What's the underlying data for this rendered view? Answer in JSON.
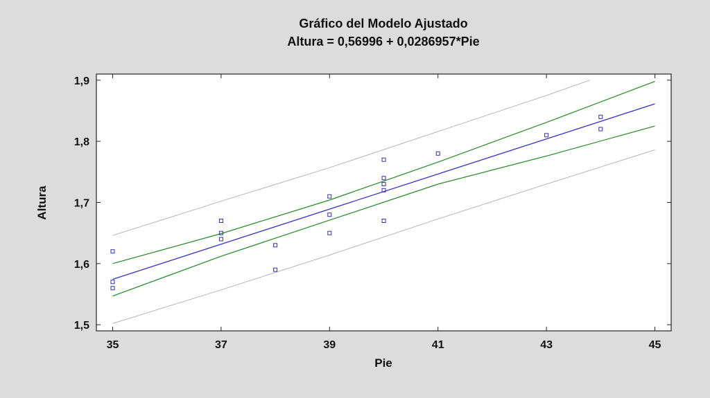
{
  "chart_data": {
    "type": "scatter",
    "title": "Gráfico del Modelo Ajustado",
    "subtitle": "Altura = 0,56996 + 0,0286957*Pie",
    "xlabel": "Pie",
    "ylabel": "Altura",
    "xlim": [
      34.7,
      45.3
    ],
    "ylim": [
      1.49,
      1.91
    ],
    "xticks": [
      35,
      37,
      39,
      41,
      43,
      45
    ],
    "xtick_labels": [
      "35",
      "37",
      "39",
      "41",
      "43",
      "45"
    ],
    "yticks": [
      1.5,
      1.6,
      1.7,
      1.8,
      1.9
    ],
    "ytick_labels": [
      "1,5",
      "1,6",
      "1,7",
      "1,8",
      "1,9"
    ],
    "grid": false,
    "points": {
      "x": [
        35,
        35,
        35,
        37,
        37,
        37,
        38,
        38,
        39,
        39,
        39,
        40,
        40,
        40,
        40,
        40,
        41,
        43,
        44,
        44
      ],
      "y": [
        1.62,
        1.57,
        1.56,
        1.67,
        1.65,
        1.64,
        1.63,
        1.59,
        1.71,
        1.68,
        1.65,
        1.77,
        1.74,
        1.73,
        1.72,
        1.67,
        1.78,
        1.81,
        1.84,
        1.82
      ]
    },
    "fit_line": {
      "x": [
        35,
        45
      ],
      "y": [
        1.5743,
        1.8613
      ]
    },
    "confidence_upper": {
      "x": [
        35,
        37,
        39,
        41,
        43,
        45
      ],
      "y": [
        1.6,
        1.649,
        1.704,
        1.766,
        1.831,
        1.898
      ]
    },
    "confidence_lower": {
      "x": [
        35,
        37,
        39,
        41,
        43,
        45
      ],
      "y": [
        1.547,
        1.612,
        1.671,
        1.73,
        1.776,
        1.825
      ]
    },
    "prediction_upper": {
      "x": [
        35,
        37,
        39,
        41,
        43,
        43.8
      ],
      "y": [
        1.646,
        1.702,
        1.757,
        1.816,
        1.875,
        1.9
      ]
    },
    "prediction_lower": {
      "x": [
        35,
        37,
        39,
        41,
        43,
        45
      ],
      "y": [
        1.502,
        1.557,
        1.614,
        1.673,
        1.73,
        1.786
      ]
    },
    "colors": {
      "background": "#dcdcdc",
      "plot_background": "#ffffff",
      "points": "#2e2eb8",
      "fit_line": "#3030d0",
      "confidence": "#1f8a1f",
      "prediction": "#b4b4b4",
      "axis": "#222222"
    }
  }
}
